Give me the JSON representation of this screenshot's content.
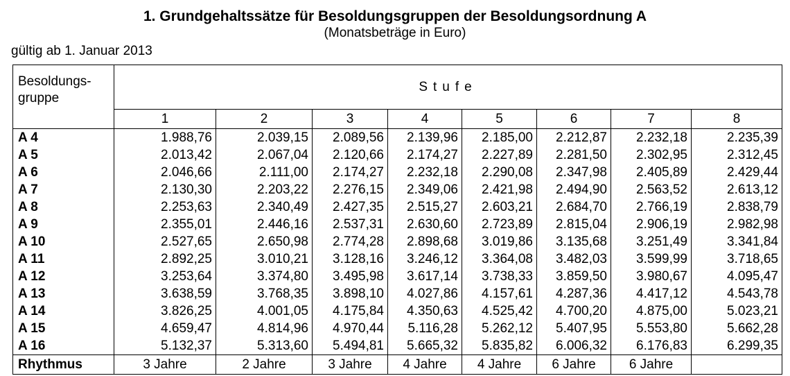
{
  "title": "1. Grundgehaltssätze für Besoldungsgruppen der Besoldungsordnung A",
  "subtitle": "(Monatsbeträge in Euro)",
  "valid_from": "gültig ab 1. Januar 2013",
  "table": {
    "row_header": [
      "Besoldungs-",
      "gruppe"
    ],
    "column_group": "Stufe",
    "columns": [
      "1",
      "2",
      "3",
      "4",
      "5",
      "6",
      "7",
      "8"
    ],
    "rows": [
      {
        "group": "A 4",
        "values": [
          "1.988,76",
          "2.039,15",
          "2.089,56",
          "2.139,96",
          "2.185,00",
          "2.212,87",
          "2.232,18",
          "2.235,39"
        ]
      },
      {
        "group": "A 5",
        "values": [
          "2.013,42",
          "2.067,04",
          "2.120,66",
          "2.174,27",
          "2.227,89",
          "2.281,50",
          "2.302,95",
          "2.312,45"
        ]
      },
      {
        "group": "A 6",
        "values": [
          "2.046,66",
          "2.111,00",
          "2.174,27",
          "2.232,18",
          "2.290,08",
          "2.347,98",
          "2.405,89",
          "2.429,44"
        ]
      },
      {
        "group": "A 7",
        "values": [
          "2.130,30",
          "2.203,22",
          "2.276,15",
          "2.349,06",
          "2.421,98",
          "2.494,90",
          "2.563,52",
          "2.613,12"
        ]
      },
      {
        "group": "A 8",
        "values": [
          "2.253,63",
          "2.340,49",
          "2.427,35",
          "2.515,27",
          "2.603,21",
          "2.684,70",
          "2.766,19",
          "2.838,79"
        ]
      },
      {
        "group": "A 9",
        "values": [
          "2.355,01",
          "2.446,16",
          "2.537,31",
          "2.630,60",
          "2.723,89",
          "2.815,04",
          "2.906,19",
          "2.982,98"
        ]
      },
      {
        "group": "A 10",
        "values": [
          "2.527,65",
          "2.650,98",
          "2.774,28",
          "2.898,68",
          "3.019,86",
          "3.135,68",
          "3.251,49",
          "3.341,84"
        ]
      },
      {
        "group": "A 11",
        "values": [
          "2.892,25",
          "3.010,21",
          "3.128,16",
          "3.246,12",
          "3.364,08",
          "3.482,03",
          "3.599,99",
          "3.718,65"
        ]
      },
      {
        "group": "A 12",
        "values": [
          "3.253,64",
          "3.374,80",
          "3.495,98",
          "3.617,14",
          "3.738,33",
          "3.859,50",
          "3.980,67",
          "4.095,47"
        ]
      },
      {
        "group": "A 13",
        "values": [
          "3.638,59",
          "3.768,35",
          "3.898,10",
          "4.027,86",
          "4.157,61",
          "4.287,36",
          "4.417,12",
          "4.543,78"
        ]
      },
      {
        "group": "A 14",
        "values": [
          "3.826,25",
          "4.001,05",
          "4.175,84",
          "4.350,63",
          "4.525,42",
          "4.700,20",
          "4.875,00",
          "5.023,21"
        ]
      },
      {
        "group": "A 15",
        "values": [
          "4.659,47",
          "4.814,96",
          "4.970,44",
          "5.116,28",
          "5.262,12",
          "5.407,95",
          "5.553,80",
          "5.662,28"
        ]
      },
      {
        "group": "A 16",
        "values": [
          "5.132,37",
          "5.313,60",
          "5.494,81",
          "5.665,32",
          "5.835,82",
          "6.006,32",
          "6.176,83",
          "6.299,35"
        ]
      }
    ],
    "rhythm": {
      "label": "Rhythmus",
      "values": [
        "3 Jahre",
        "2 Jahre",
        "3 Jahre",
        "4 Jahre",
        "4 Jahre",
        "6 Jahre",
        "6 Jahre"
      ]
    }
  }
}
